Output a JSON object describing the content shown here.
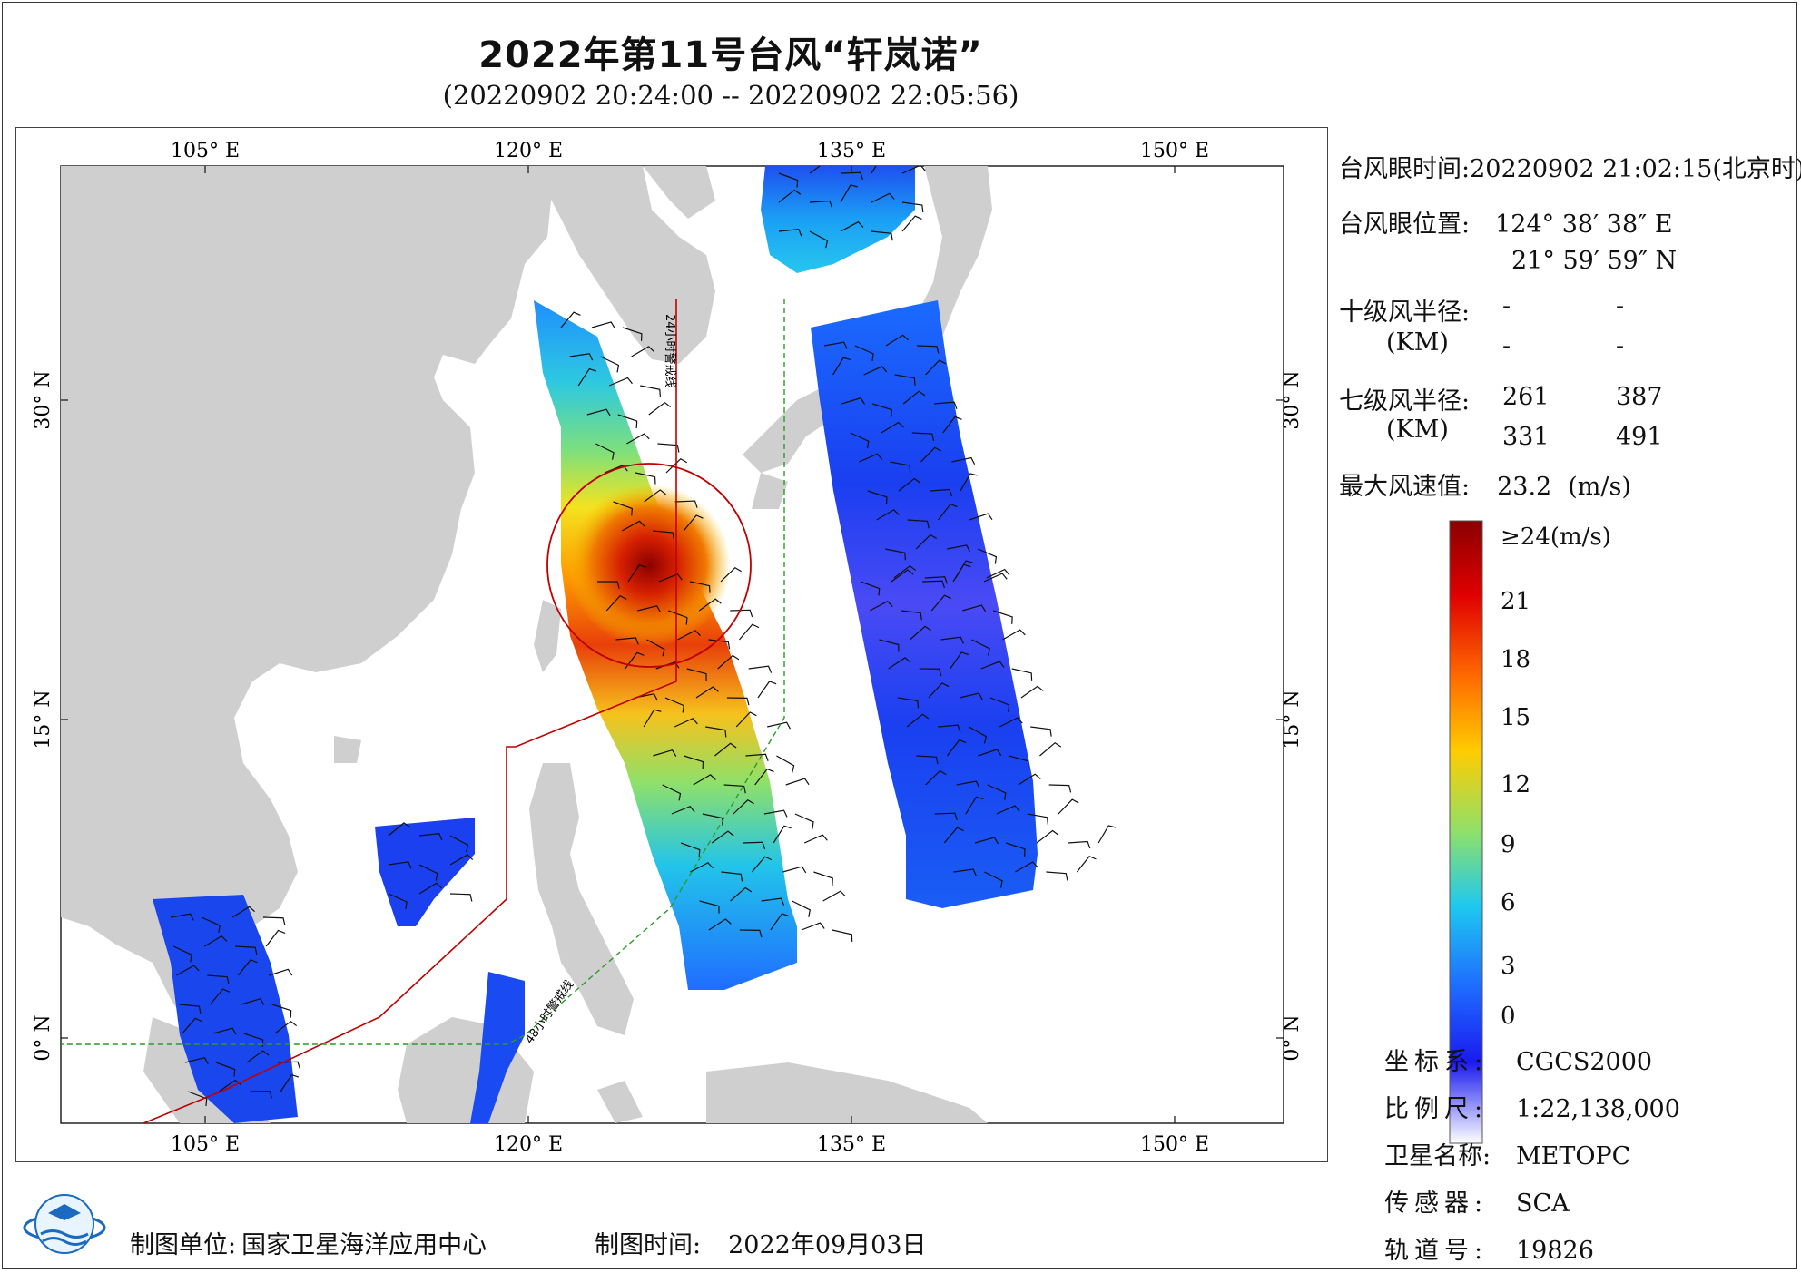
{
  "title": "2022年第11号台风“轩岚诺”",
  "subtitle": "(20220902 20:24:00 -- 20220902 22:05:56)",
  "map": {
    "lon_ticks": [
      "105° E",
      "120° E",
      "135° E",
      "150° E"
    ],
    "lat_ticks": [
      "30° N",
      "15° N",
      "0° N"
    ],
    "line_24h": "24小时警戒线",
    "line_48h": "48小时警戒线",
    "colors": {
      "land": "#cfcfcf",
      "sea": "#ffffff",
      "line_24h": "#c00000",
      "line_48h": "#2a9a2a",
      "wind_circle": "#c00000"
    }
  },
  "typhoon_info": {
    "eye_time_label": "台风眼时间:",
    "eye_time_value": "20220902 21:02:15(北京时)",
    "eye_pos_label": "台风眼位置:",
    "eye_lon": "124° 38′ 38″ E",
    "eye_lat": "21° 59′ 59″ N",
    "r10_label": "十级风半径:",
    "r10_unit": "(KM)",
    "r10_values": [
      "-",
      "-",
      "-",
      "-"
    ],
    "r7_label": "七级风半径:",
    "r7_unit": "(KM)",
    "r7_values": [
      "261",
      "387",
      "331",
      "491"
    ],
    "max_wind_label": "最大风速值:",
    "max_wind_value": "23.2",
    "max_wind_unit": "(m/s)"
  },
  "colorbar": {
    "top_label": "≥24(m/s)",
    "labels": [
      "21",
      "18",
      "15",
      "12",
      "9",
      "6",
      "3",
      "0"
    ]
  },
  "meta": {
    "crs_label": "坐标系:",
    "crs_value": "CGCS2000",
    "scale_label": "比例尺:",
    "scale_value": "1:22,138,000",
    "satellite_label": "卫星名称:",
    "satellite_value": "METOPC",
    "sensor_label": "传感器:",
    "sensor_value": "SCA",
    "orbit_label": "轨道号:",
    "orbit_value": "19826"
  },
  "footer": {
    "unit_label": "制图单位:",
    "unit_value": "国家卫星海洋应用中心",
    "time_label": "制图时间:",
    "time_value": "2022年09月03日"
  }
}
